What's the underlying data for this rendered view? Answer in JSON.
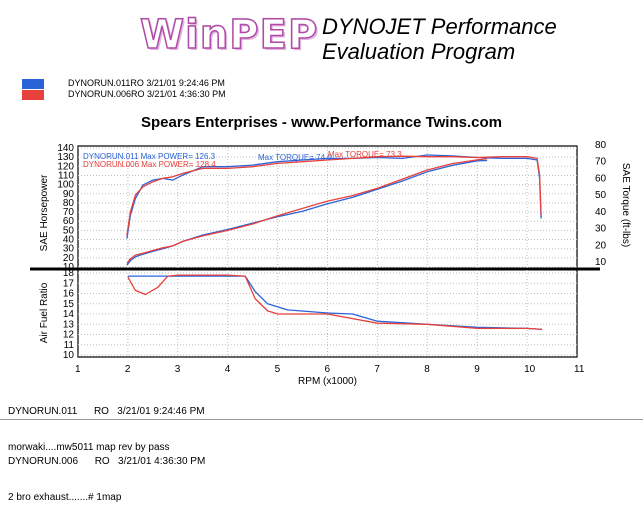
{
  "header": {
    "logo_text": "WinPEP",
    "title_line1": "DYNOJET Performance",
    "title_line2": "Evaluation Program"
  },
  "legend": [
    {
      "label": "DYNORUN.011RO   3/21/01 9:24:46 PM",
      "color": "#2a62d8"
    },
    {
      "label": "DYNORUN.006RO   3/21/01 4:36:30 PM",
      "color": "#e8403a"
    }
  ],
  "subtitle": "Spears Enterprises - www.Performance Twins.com",
  "chart_data": [
    {
      "type": "line",
      "ylabel": "SAE Horsepower",
      "y2label": "SAE Torque (ft-lbs)",
      "ylim": [
        10,
        140
      ],
      "yticks": [
        10,
        20,
        30,
        40,
        50,
        60,
        70,
        80,
        90,
        100,
        110,
        120,
        130,
        140
      ],
      "y2lim": [
        6,
        81
      ],
      "y2ticks": [
        10,
        20,
        30,
        40,
        50,
        60,
        70,
        80
      ],
      "annotations": [
        {
          "text": "DYNORUN.011   Max POWER= 126.3",
          "color": "#2a62d8"
        },
        {
          "text": "DYNORUN.006   Max POWER= 128.4",
          "color": "#e8403a"
        },
        {
          "text": "Max TORQUE= 74.0",
          "color": "#2a62d8"
        },
        {
          "text": "Max TORQUE= 73.3",
          "color": "#e8403a"
        }
      ],
      "series": [
        {
          "name": "DYNORUN.011",
          "measure": "Power",
          "color": "#2a62d8",
          "x": [
            1.98,
            2.05,
            2.15,
            2.3,
            2.5,
            2.7,
            2.9,
            3.1,
            3.5,
            4.0,
            4.5,
            5.0,
            5.5,
            6.0,
            6.5,
            7.0,
            7.5,
            8.0,
            8.5,
            9.0,
            9.2
          ],
          "y": [
            12,
            17,
            21,
            24,
            27,
            30,
            33,
            38,
            45,
            51,
            58,
            65,
            71,
            79,
            86,
            95,
            104,
            114,
            121,
            126,
            126.3
          ]
        },
        {
          "name": "DYNORUN.006",
          "measure": "Power",
          "color": "#e8403a",
          "x": [
            1.98,
            2.05,
            2.15,
            2.3,
            2.5,
            2.7,
            2.9,
            3.1,
            3.5,
            4.0,
            4.5,
            5.0,
            5.5,
            6.0,
            6.5,
            7.0,
            7.5,
            8.0,
            8.5,
            9.0,
            9.2
          ],
          "y": [
            14,
            19,
            23,
            25,
            28,
            31,
            33,
            38,
            44,
            50,
            57,
            66,
            74,
            82,
            88,
            96,
            106,
            116,
            123,
            127,
            128.4
          ]
        },
        {
          "name": "DYNORUN.011",
          "measure": "Torque",
          "color": "#2a62d8",
          "x": [
            1.98,
            2.05,
            2.15,
            2.3,
            2.5,
            2.7,
            2.9,
            3.1,
            3.5,
            4.0,
            4.5,
            5.0,
            5.5,
            6.0,
            6.5,
            7.0,
            7.5,
            8.0,
            8.5,
            9.0,
            9.5,
            10.0,
            10.2,
            10.25,
            10.28
          ],
          "y": [
            24,
            38,
            48,
            56,
            59,
            60,
            59,
            62,
            67,
            67,
            68,
            70,
            71,
            72,
            72,
            72.5,
            72,
            74,
            73.5,
            72.5,
            72,
            72,
            71,
            60,
            36
          ]
        },
        {
          "name": "DYNORUN.006",
          "measure": "Torque",
          "color": "#e8403a",
          "x": [
            1.98,
            2.05,
            2.15,
            2.3,
            2.5,
            2.7,
            2.9,
            3.1,
            3.5,
            4.0,
            4.5,
            5.0,
            5.5,
            6.0,
            6.5,
            7.0,
            7.5,
            8.0,
            8.5,
            9.0,
            9.5,
            10.0,
            10.2,
            10.25,
            10.28
          ],
          "y": [
            26,
            40,
            50,
            55,
            58,
            60,
            61,
            63,
            66,
            66,
            67,
            69,
            70,
            71,
            72,
            73,
            73.3,
            73,
            73,
            72.5,
            73,
            73,
            72,
            62,
            38
          ]
        }
      ]
    },
    {
      "type": "line",
      "ylabel": "Air Fuel Ratio",
      "xlabel": "RPM (x1000)",
      "ylim": [
        10,
        18
      ],
      "yticks": [
        10,
        11,
        12,
        13,
        14,
        15,
        16,
        17,
        18
      ],
      "xlim": [
        1,
        11
      ],
      "xticks": [
        "1",
        "2",
        "3",
        "4",
        "5",
        "6",
        "7",
        "8",
        "9",
        "10",
        "11"
      ],
      "series": [
        {
          "name": "DYNORUN.011",
          "color": "#2a62d8",
          "x": [
            2.0,
            2.5,
            3.0,
            3.5,
            4.0,
            4.35,
            4.55,
            4.8,
            5.2,
            6.0,
            6.5,
            7.0,
            8.0,
            9.0,
            10.0,
            10.3
          ],
          "y": [
            17.7,
            17.7,
            17.7,
            17.7,
            17.7,
            17.7,
            16.2,
            15.0,
            14.4,
            14.1,
            14.0,
            13.3,
            13.0,
            12.7,
            12.6,
            12.5
          ]
        },
        {
          "name": "DYNORUN.006",
          "color": "#e8403a",
          "x": [
            2.0,
            2.15,
            2.35,
            2.6,
            2.8,
            3.0,
            3.5,
            4.0,
            4.35,
            4.55,
            4.8,
            5.0,
            6.0,
            7.0,
            8.0,
            9.0,
            10.0,
            10.3
          ],
          "y": [
            17.6,
            16.3,
            15.9,
            16.6,
            17.7,
            17.8,
            17.8,
            17.8,
            17.7,
            15.5,
            14.3,
            14.0,
            14.0,
            13.1,
            13.0,
            12.6,
            12.6,
            12.5
          ]
        }
      ]
    }
  ],
  "runs": [
    {
      "line1": "DYNORUN.011      RO   3/21/01 9:24:46 PM",
      "line2": "morwaki....mw5011 map rev by pass"
    },
    {
      "line1": "DYNORUN.006      RO   3/21/01 4:36:30 PM",
      "line2": "2 bro exhaust.......# 1map"
    }
  ]
}
